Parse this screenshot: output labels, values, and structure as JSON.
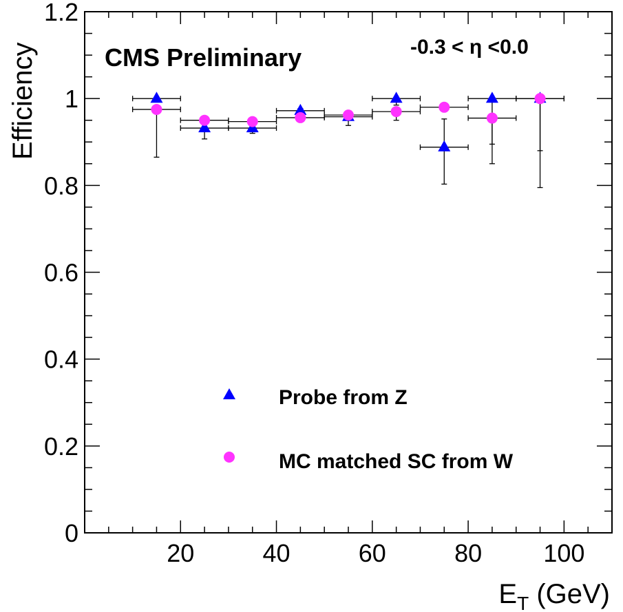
{
  "chart_data": {
    "type": "scatter",
    "title": "",
    "experiment_label": "CMS Preliminary",
    "region_label": "-0.3 < η <0.0",
    "xlabel": "E",
    "xlabel_sub": "T",
    "xlabel_unit": " (GeV)",
    "ylabel": "Efficiency",
    "xlim": [
      0,
      110
    ],
    "ylim": [
      0,
      1.2
    ],
    "x_ticks": [
      20,
      40,
      60,
      80,
      100
    ],
    "x_tick_labels": [
      "20",
      "40",
      "60",
      "80",
      "100"
    ],
    "y_ticks": [
      0,
      0.2,
      0.4,
      0.6,
      0.8,
      1,
      1.2
    ],
    "y_tick_labels": [
      "0",
      "0.2",
      "0.4",
      "0.6",
      "0.8",
      "1",
      "1.2"
    ],
    "grid": false,
    "legend_position": "bottom-center",
    "series": [
      {
        "name": "Probe from Z",
        "marker": "triangle",
        "color": "#0000ff",
        "points": [
          {
            "x": 15,
            "xerr": 5,
            "y": 1.0,
            "yerr_low": 0.0,
            "yerr_high": 0.0
          },
          {
            "x": 25,
            "xerr": 5,
            "y": 0.932,
            "yerr_low": 0.025,
            "yerr_high": 0.015
          },
          {
            "x": 35,
            "xerr": 5,
            "y": 0.932,
            "yerr_low": 0.012,
            "yerr_high": 0.01
          },
          {
            "x": 45,
            "xerr": 5,
            "y": 0.972,
            "yerr_low": 0.012,
            "yerr_high": 0.005
          },
          {
            "x": 55,
            "xerr": 5,
            "y": 0.958,
            "yerr_low": 0.02,
            "yerr_high": 0.005
          },
          {
            "x": 65,
            "xerr": 5,
            "y": 1.0,
            "yerr_low": 0.015,
            "yerr_high": 0.0
          },
          {
            "x": 75,
            "xerr": 5,
            "y": 0.888,
            "yerr_low": 0.085,
            "yerr_high": 0.065
          },
          {
            "x": 85,
            "xerr": 5,
            "y": 1.0,
            "yerr_low": 0.105,
            "yerr_high": 0.0
          },
          {
            "x": 95,
            "xerr": 5,
            "y": 1.0,
            "yerr_low": 0.12,
            "yerr_high": 0.0
          }
        ]
      },
      {
        "name": "MC matched SC from W",
        "marker": "circle",
        "color": "#ff33ff",
        "points": [
          {
            "x": 15,
            "xerr": 5,
            "y": 0.975,
            "yerr_low": 0.11,
            "yerr_high": 0.0
          },
          {
            "x": 25,
            "xerr": 5,
            "y": 0.95,
            "yerr_low": 0.0,
            "yerr_high": 0.0
          },
          {
            "x": 35,
            "xerr": 5,
            "y": 0.947,
            "yerr_low": 0.0,
            "yerr_high": 0.0
          },
          {
            "x": 45,
            "xerr": 5,
            "y": 0.956,
            "yerr_low": 0.0,
            "yerr_high": 0.0
          },
          {
            "x": 55,
            "xerr": 5,
            "y": 0.962,
            "yerr_low": 0.0,
            "yerr_high": 0.0
          },
          {
            "x": 65,
            "xerr": 5,
            "y": 0.97,
            "yerr_low": 0.02,
            "yerr_high": 0.0
          },
          {
            "x": 75,
            "xerr": 5,
            "y": 0.98,
            "yerr_low": 0.0,
            "yerr_high": 0.0
          },
          {
            "x": 85,
            "xerr": 5,
            "y": 0.955,
            "yerr_low": 0.105,
            "yerr_high": 0.0
          },
          {
            "x": 95,
            "xerr": 5,
            "y": 1.0,
            "yerr_low": 0.205,
            "yerr_high": 0.0
          }
        ]
      }
    ]
  }
}
